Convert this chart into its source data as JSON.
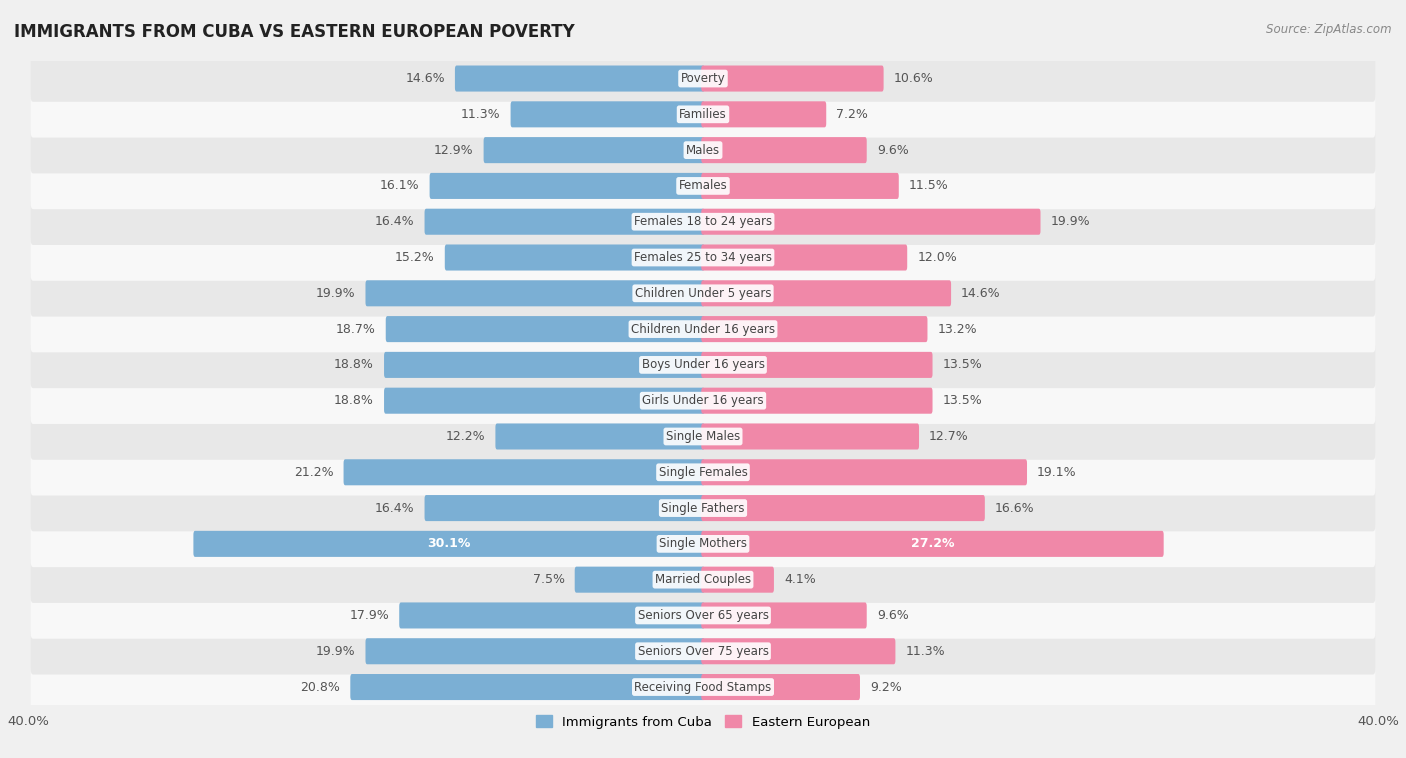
{
  "title": "IMMIGRANTS FROM CUBA VS EASTERN EUROPEAN POVERTY",
  "source": "Source: ZipAtlas.com",
  "categories": [
    "Poverty",
    "Families",
    "Males",
    "Females",
    "Females 18 to 24 years",
    "Females 25 to 34 years",
    "Children Under 5 years",
    "Children Under 16 years",
    "Boys Under 16 years",
    "Girls Under 16 years",
    "Single Males",
    "Single Females",
    "Single Fathers",
    "Single Mothers",
    "Married Couples",
    "Seniors Over 65 years",
    "Seniors Over 75 years",
    "Receiving Food Stamps"
  ],
  "cuba_values": [
    14.6,
    11.3,
    12.9,
    16.1,
    16.4,
    15.2,
    19.9,
    18.7,
    18.8,
    18.8,
    12.2,
    21.2,
    16.4,
    30.1,
    7.5,
    17.9,
    19.9,
    20.8
  ],
  "eastern_values": [
    10.6,
    7.2,
    9.6,
    11.5,
    19.9,
    12.0,
    14.6,
    13.2,
    13.5,
    13.5,
    12.7,
    19.1,
    16.6,
    27.2,
    4.1,
    9.6,
    11.3,
    9.2
  ],
  "cuba_color": "#7bafd4",
  "eastern_color": "#f088a8",
  "cuba_color_light": "#a8c8e8",
  "eastern_color_light": "#f4b8cc",
  "cuba_label": "Immigrants from Cuba",
  "eastern_label": "Eastern European",
  "xlim": 40.0,
  "axis_label": "40.0%",
  "background_color": "#f0f0f0",
  "row_light": "#f8f8f8",
  "row_dark": "#e8e8e8",
  "bar_height": 0.52,
  "label_fontsize": 9.0,
  "label_color": "#555555",
  "white_label_color": "#ffffff",
  "single_mothers_idx": 13,
  "cat_label_fontsize": 8.5,
  "cat_label_color": "#444444"
}
